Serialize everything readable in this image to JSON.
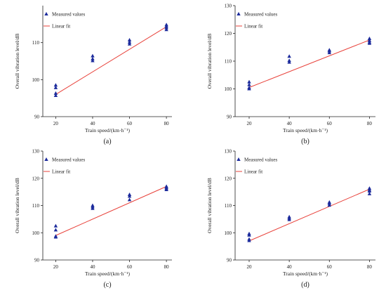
{
  "chart_data": [
    {
      "type": "scatter",
      "panel_label": "(a)",
      "xlabel": "Train speed/(km·h⁻¹)",
      "ylabel": "Overall vibration level/dB",
      "xticks": [
        20,
        40,
        60,
        80
      ],
      "xlim": [
        13,
        83
      ],
      "ylim": [
        90,
        120
      ],
      "yticks": [
        90,
        100,
        110
      ],
      "grid": false,
      "legend_position": "top-left",
      "series": [
        {
          "name": "Measured values",
          "kind": "points",
          "color": "#1c2b9c",
          "x": [
            20,
            20,
            20,
            20,
            40,
            40,
            40,
            60,
            60,
            60,
            80,
            80,
            80,
            80
          ],
          "y": [
            98.5,
            97.8,
            96.3,
            95.7,
            106.4,
            105.6,
            105.1,
            110.7,
            110.1,
            109.6,
            114.8,
            114.4,
            114.0,
            113.5
          ]
        },
        {
          "name": "Linear fit",
          "kind": "line",
          "color": "#e8413a",
          "x": [
            20,
            80
          ],
          "y": [
            96.0,
            114.3
          ]
        }
      ]
    },
    {
      "type": "scatter",
      "panel_label": "(b)",
      "xlabel": "Train speed/(km·h⁻¹)",
      "ylabel": "Overall vibration level/dB",
      "xticks": [
        20,
        40,
        60,
        80
      ],
      "xlim": [
        13,
        83
      ],
      "ylim": [
        90,
        130
      ],
      "yticks": [
        90,
        100,
        110,
        120,
        130
      ],
      "grid": false,
      "legend_position": "top-left",
      "series": [
        {
          "name": "Measured values",
          "kind": "points",
          "color": "#1c2b9c",
          "x": [
            20,
            20,
            20,
            20,
            40,
            40,
            40,
            60,
            60,
            60,
            80,
            80,
            80,
            80
          ],
          "y": [
            102.5,
            101.5,
            100.4,
            100.0,
            111.7,
            110.2,
            109.6,
            114.0,
            113.6,
            113.0,
            118.1,
            117.4,
            116.8,
            116.4
          ]
        },
        {
          "name": "Linear fit",
          "kind": "line",
          "color": "#e8413a",
          "x": [
            20,
            80
          ],
          "y": [
            100.5,
            117.6
          ]
        }
      ]
    },
    {
      "type": "scatter",
      "panel_label": "(c)",
      "xlabel": "Train speed/(km·h⁻¹)",
      "ylabel": "Overall vibration level/dB",
      "xticks": [
        20,
        40,
        60,
        80
      ],
      "xlim": [
        13,
        83
      ],
      "ylim": [
        90,
        130
      ],
      "yticks": [
        90,
        100,
        110,
        120,
        130
      ],
      "grid": false,
      "legend_position": "top-left",
      "series": [
        {
          "name": "Measured values",
          "kind": "points",
          "color": "#1c2b9c",
          "x": [
            20,
            20,
            20,
            20,
            40,
            40,
            40,
            60,
            60,
            60,
            80,
            80,
            80,
            80
          ],
          "y": [
            102.5,
            101.0,
            98.7,
            98.4,
            110.0,
            109.5,
            108.9,
            114.0,
            113.4,
            112.1,
            117.0,
            116.6,
            116.2,
            115.8
          ]
        },
        {
          "name": "Linear fit",
          "kind": "line",
          "color": "#e8413a",
          "x": [
            20,
            80
          ],
          "y": [
            99.0,
            117.0
          ]
        }
      ]
    },
    {
      "type": "scatter",
      "panel_label": "(d)",
      "xlabel": "Train speed/(km·h⁻¹)",
      "ylabel": "Overall vibration level/dB",
      "xticks": [
        20,
        40,
        60,
        80
      ],
      "xlim": [
        13,
        83
      ],
      "ylim": [
        90,
        130
      ],
      "yticks": [
        90,
        100,
        110,
        120,
        130
      ],
      "grid": false,
      "legend_position": "top-left",
      "series": [
        {
          "name": "Measured values",
          "kind": "points",
          "color": "#1c2b9c",
          "x": [
            20,
            20,
            20,
            20,
            40,
            40,
            40,
            60,
            60,
            60,
            80,
            80,
            80,
            80
          ],
          "y": [
            99.6,
            99.1,
            97.6,
            97.1,
            105.8,
            105.3,
            104.8,
            111.2,
            110.7,
            110.1,
            116.3,
            115.7,
            115.3,
            114.3
          ]
        },
        {
          "name": "Linear fit",
          "kind": "line",
          "color": "#e8413a",
          "x": [
            20,
            80
          ],
          "y": [
            97.0,
            116.0
          ]
        }
      ]
    }
  ]
}
